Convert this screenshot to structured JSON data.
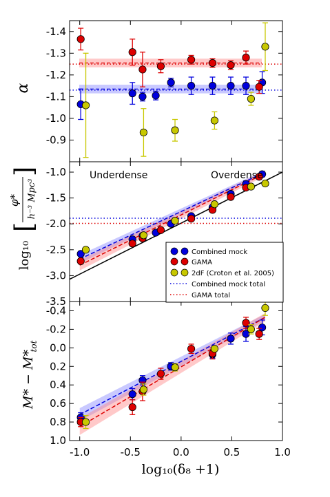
{
  "colors": {
    "mock": "#0000dd",
    "gama": "#dd0000",
    "twodf": "#c8c800",
    "mock_band": "#8888ff",
    "gama_band": "#ff8888",
    "fit": "#000000"
  },
  "labels": {
    "xlabel": "log₁₀(δ₈ +1)",
    "ylabel_alpha": "α",
    "ylabel_phi_prefix": "log₁₀",
    "ylabel_phi_num": "φ*",
    "ylabel_phi_den": "h⁻³ Mpc³",
    "ylabel_mstar": "M* − M*",
    "ylabel_mstar_sub": "tot",
    "underdense": "Underdense",
    "overdense": "Overdense"
  },
  "legend": {
    "mock": "Combined mock",
    "gama": "GAMA",
    "twodf": "2dF (Croton et al. 2005)",
    "mock_total": "Combined mock total",
    "gama_total": "GAMA total"
  },
  "chart_data": [
    {
      "type": "scatter",
      "panel": "alpha",
      "ylabel": "α",
      "xlim": [
        -1.1,
        1.0
      ],
      "ylim": [
        -0.8,
        -1.45
      ],
      "inverted_y": true,
      "xticks": [
        "-1.0",
        "-0.5",
        "0.0",
        "0.5",
        "1.0"
      ],
      "yticks": [
        "-1.4",
        "-1.3",
        "-1.2",
        "-1.1",
        "-1.0",
        "-0.9"
      ],
      "ytick_values": [
        -1.4,
        -1.3,
        -1.2,
        -1.1,
        -1.0,
        -0.9
      ],
      "series": [
        {
          "key": "mock",
          "x": [
            -0.99,
            -0.48,
            -0.38,
            -0.25,
            -0.1,
            0.1,
            0.31,
            0.49,
            0.64,
            0.8
          ],
          "y": [
            -1.065,
            -1.115,
            -1.1,
            -1.105,
            -1.165,
            -1.15,
            -1.15,
            -1.15,
            -1.15,
            -1.165
          ],
          "err": [
            0.07,
            0.05,
            0.02,
            0.02,
            0.02,
            0.04,
            0.04,
            0.04,
            0.04,
            0.05
          ]
        },
        {
          "key": "gama",
          "x": [
            -0.99,
            -0.48,
            -0.38,
            -0.2,
            0.1,
            0.31,
            0.49,
            0.64,
            0.77
          ],
          "y": [
            -1.365,
            -1.305,
            -1.225,
            -1.24,
            -1.27,
            -1.255,
            -1.245,
            -1.28,
            -1.145
          ],
          "err": [
            0.05,
            0.06,
            0.08,
            0.03,
            0.02,
            0.02,
            0.02,
            0.03,
            0.03
          ]
        },
        {
          "key": "twodf",
          "x": [
            -0.94,
            -0.37,
            -0.06,
            0.33,
            0.69,
            0.83
          ],
          "y": [
            -1.06,
            -0.935,
            -0.945,
            -0.99,
            -1.09,
            -1.33
          ],
          "err": [
            0.24,
            0.11,
            0.05,
            0.04,
            0.03,
            0.11
          ]
        }
      ],
      "bands": [
        {
          "key": "mock",
          "center": -1.135,
          "half_width": 0.02
        },
        {
          "key": "gama",
          "center": -1.255,
          "half_width": 0.02
        }
      ],
      "totals": [
        {
          "key": "mock",
          "y": -1.13
        },
        {
          "key": "gama",
          "y": -1.25
        }
      ]
    },
    {
      "type": "scatter",
      "panel": "phi",
      "ylabel": "log₁₀ [φ* / h⁻³ Mpc³]",
      "xlim": [
        -1.1,
        1.0
      ],
      "ylim": [
        -3.5,
        -0.8
      ],
      "xticks": [
        "-1.0",
        "-0.5",
        "0.0",
        "0.5",
        "1.0"
      ],
      "yticks": [
        "-1.0",
        "-1.5",
        "-2.0",
        "-2.5",
        "-3.0",
        "-3.5"
      ],
      "ytick_values": [
        -1.0,
        -1.5,
        -2.0,
        -2.5,
        -3.0,
        -3.5
      ],
      "series": [
        {
          "key": "mock",
          "x": [
            -0.99,
            -0.48,
            -0.38,
            -0.25,
            -0.1,
            0.1,
            0.31,
            0.49,
            0.64,
            0.8
          ],
          "y": [
            -2.58,
            -2.3,
            -2.23,
            -2.17,
            -2.0,
            -1.85,
            -1.68,
            -1.42,
            -1.23,
            -1.04
          ],
          "err": [
            0.05,
            0.05,
            0.04,
            0.04,
            0.04,
            0.04,
            0.04,
            0.05,
            0.06,
            0.05
          ]
        },
        {
          "key": "gama",
          "x": [
            -0.99,
            -0.48,
            -0.38,
            -0.2,
            0.1,
            0.31,
            0.49,
            0.64,
            0.77
          ],
          "y": [
            -2.72,
            -2.38,
            -2.28,
            -2.12,
            -1.9,
            -1.73,
            -1.48,
            -1.3,
            -1.09
          ],
          "err": [
            0.05,
            0.05,
            0.04,
            0.04,
            0.04,
            0.04,
            0.04,
            0.04,
            0.05
          ]
        },
        {
          "key": "twodf",
          "x": [
            -0.94,
            -0.37,
            -0.06,
            0.33,
            0.69,
            0.83
          ],
          "y": [
            -2.5,
            -2.22,
            -1.94,
            -1.62,
            -1.28,
            -1.22
          ],
          "err": [
            0.03,
            0.03,
            0.02,
            0.02,
            0.02,
            0.03
          ]
        }
      ],
      "fits": [
        {
          "key": "mock",
          "x": [
            -1.0,
            0.83
          ],
          "y": [
            -2.68,
            -1.0
          ],
          "band": 0.08
        },
        {
          "key": "gama",
          "x": [
            -1.0,
            0.83
          ],
          "y": [
            -2.8,
            -1.02
          ],
          "band": 0.1
        },
        {
          "key": "fit",
          "x": [
            -1.1,
            1.0
          ],
          "y": [
            -3.07,
            -1.0
          ],
          "band": 0
        }
      ],
      "totals": [
        {
          "key": "mock",
          "y": -1.89
        },
        {
          "key": "gama",
          "y": -1.99
        }
      ]
    },
    {
      "type": "scatter",
      "panel": "mstar",
      "ylabel": "M* − M*tot",
      "xlim": [
        -1.1,
        1.0
      ],
      "ylim": [
        1.0,
        -0.5
      ],
      "inverted_y": true,
      "xticks": [
        "-1.0",
        "-0.5",
        "0.0",
        "0.5",
        "1.0"
      ],
      "xtick_values": [
        -1.0,
        -0.5,
        0.0,
        0.5,
        1.0
      ],
      "yticks": [
        "-0.4",
        "-0.2",
        "0.0",
        "0.2",
        "0.4",
        "0.6",
        "0.8",
        "1.0"
      ],
      "ytick_values": [
        -0.4,
        -0.2,
        0.0,
        0.2,
        0.4,
        0.6,
        0.8,
        1.0
      ],
      "series": [
        {
          "key": "mock",
          "x": [
            -0.99,
            -0.48,
            -0.38,
            -0.1,
            0.31,
            0.49,
            0.64,
            0.8
          ],
          "y": [
            0.75,
            0.5,
            0.35,
            0.2,
            0.07,
            -0.1,
            -0.15,
            -0.22
          ],
          "err": [
            0.05,
            0.06,
            0.05,
            0.04,
            0.04,
            0.06,
            0.08,
            0.08
          ]
        },
        {
          "key": "gama",
          "x": [
            -0.99,
            -0.48,
            -0.38,
            -0.2,
            0.1,
            0.31,
            0.64,
            0.77
          ],
          "y": [
            0.8,
            0.64,
            0.47,
            0.28,
            0.01,
            0.06,
            -0.27,
            -0.15
          ],
          "err": [
            0.05,
            0.08,
            0.1,
            0.06,
            0.05,
            0.06,
            0.06,
            0.06
          ]
        },
        {
          "key": "twodf",
          "x": [
            -0.94,
            -0.37,
            -0.06,
            0.33,
            0.69,
            0.83
          ],
          "y": [
            0.8,
            0.45,
            0.21,
            0.01,
            -0.2,
            -0.43
          ],
          "err": [
            0.07,
            0.06,
            0.04,
            0.03,
            0.05,
            0.08
          ]
        }
      ],
      "fits": [
        {
          "key": "mock",
          "x": [
            -1.0,
            0.83
          ],
          "y": [
            0.72,
            -0.33
          ],
          "band": 0.07
        },
        {
          "key": "gama",
          "x": [
            -1.0,
            0.83
          ],
          "y": [
            0.85,
            -0.33
          ],
          "band": 0.09
        }
      ]
    }
  ]
}
